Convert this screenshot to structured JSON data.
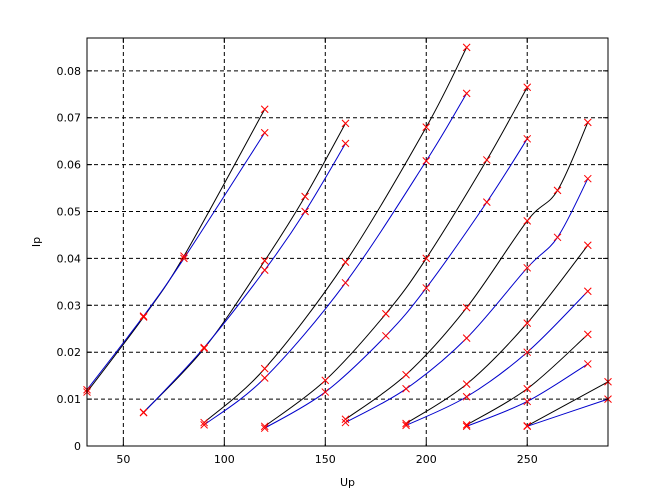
{
  "chart_data": {
    "type": "line",
    "title": "",
    "xlabel": "Up",
    "ylabel": "Ip",
    "xlim": [
      32,
      290
    ],
    "ylim": [
      0,
      0.087
    ],
    "xticks": [
      50,
      100,
      150,
      200,
      250
    ],
    "xtick_labels": [
      "50",
      "100",
      "150",
      "200",
      "250"
    ],
    "yticks": [
      0,
      0.01,
      0.02,
      0.03,
      0.04,
      0.05,
      0.06,
      0.07,
      0.08
    ],
    "ytick_labels": [
      "0",
      "0.01",
      "0.02",
      "0.03",
      "0.04",
      "0.05",
      "0.06",
      "0.07",
      "0.08"
    ],
    "grid": true,
    "grid_style": "dashed",
    "colors": {
      "black_curve": "#000000",
      "blue_curve": "#0000cc",
      "marker": "#ff0000"
    },
    "series": [
      {
        "color": "black",
        "x": [
          32,
          60,
          80,
          120
        ],
        "y": [
          0.0115,
          0.0275,
          0.0405,
          0.0718
        ]
      },
      {
        "color": "blue",
        "x": [
          32,
          60,
          80,
          120
        ],
        "y": [
          0.012,
          0.0277,
          0.04,
          0.0668
        ]
      },
      {
        "color": "black",
        "x": [
          60,
          90,
          120,
          140,
          160
        ],
        "y": [
          0.0072,
          0.0208,
          0.0395,
          0.0532,
          0.0688
        ]
      },
      {
        "color": "blue",
        "x": [
          60,
          90,
          120,
          140,
          160
        ],
        "y": [
          0.0071,
          0.021,
          0.0375,
          0.05,
          0.0645
        ]
      },
      {
        "color": "black",
        "x": [
          90,
          120,
          160,
          200,
          220
        ],
        "y": [
          0.005,
          0.0165,
          0.0392,
          0.068,
          0.085
        ]
      },
      {
        "color": "blue",
        "x": [
          90,
          120,
          160,
          200,
          220
        ],
        "y": [
          0.0045,
          0.0145,
          0.0348,
          0.0608,
          0.0752
        ]
      },
      {
        "color": "black",
        "x": [
          120,
          150,
          180,
          200,
          230,
          250
        ],
        "y": [
          0.0042,
          0.014,
          0.0282,
          0.04,
          0.061,
          0.0765
        ]
      },
      {
        "color": "blue",
        "x": [
          120,
          150,
          180,
          200,
          230,
          250
        ],
        "y": [
          0.0038,
          0.0115,
          0.0235,
          0.0337,
          0.052,
          0.0655
        ]
      },
      {
        "color": "black",
        "x": [
          160,
          190,
          220,
          250,
          265,
          280
        ],
        "y": [
          0.0057,
          0.0152,
          0.0295,
          0.048,
          0.0545,
          0.069
        ]
      },
      {
        "color": "blue",
        "x": [
          160,
          190,
          220,
          250,
          265,
          280
        ],
        "y": [
          0.005,
          0.0122,
          0.023,
          0.038,
          0.0445,
          0.057
        ]
      },
      {
        "color": "black",
        "x": [
          190,
          220,
          250,
          280
        ],
        "y": [
          0.0048,
          0.0132,
          0.0262,
          0.0428
        ]
      },
      {
        "color": "blue",
        "x": [
          190,
          220,
          250,
          280
        ],
        "y": [
          0.0044,
          0.0105,
          0.02,
          0.033
        ]
      },
      {
        "color": "black",
        "x": [
          220,
          250,
          280
        ],
        "y": [
          0.0045,
          0.0122,
          0.0238
        ]
      },
      {
        "color": "blue",
        "x": [
          220,
          250,
          280
        ],
        "y": [
          0.0042,
          0.0095,
          0.0175
        ]
      },
      {
        "color": "black",
        "x": [
          250,
          290
        ],
        "y": [
          0.0043,
          0.0137
        ]
      },
      {
        "color": "blue",
        "x": [
          250,
          290
        ],
        "y": [
          0.0042,
          0.01
        ]
      }
    ]
  }
}
